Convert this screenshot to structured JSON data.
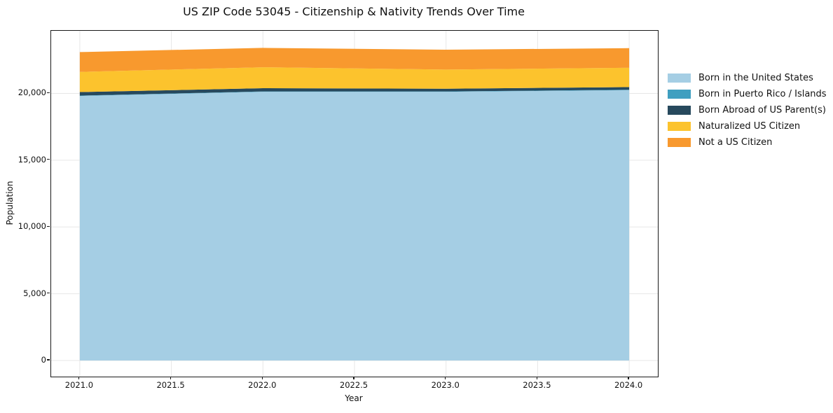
{
  "title": "US ZIP Code 53045 - Citizenship & Nativity Trends Over Time",
  "chart_data": {
    "type": "area",
    "stacked": true,
    "title": "US ZIP Code 53045 - Citizenship & Nativity Trends Over Time",
    "xlabel": "Year",
    "ylabel": "Population",
    "x": [
      2021,
      2022,
      2023,
      2024
    ],
    "series": [
      {
        "name": "Born in the United States",
        "color": "#a5cee4",
        "values": [
          19810,
          20120,
          20120,
          20245
        ]
      },
      {
        "name": "Born in Puerto Rico / Islands",
        "color": "#3f9fc0",
        "values": [
          30,
          30,
          30,
          30
        ]
      },
      {
        "name": "Born Abroad of US Parent(s)",
        "color": "#27495d",
        "values": [
          260,
          240,
          200,
          200
        ]
      },
      {
        "name": "Naturalized US Citizen",
        "color": "#fcc32d",
        "values": [
          1510,
          1570,
          1435,
          1445
        ]
      },
      {
        "name": "Not a US Citizen",
        "color": "#f8992e",
        "values": [
          1485,
          1450,
          1490,
          1470
        ]
      }
    ],
    "xlim": [
      2020.8435,
      2024.1565
    ],
    "ylim": [
      -1208,
      24690
    ],
    "x_ticks": [
      {
        "label": "2021.0",
        "value": 2021.0
      },
      {
        "label": "2021.5",
        "value": 2021.5
      },
      {
        "label": "2022.0",
        "value": 2022.0
      },
      {
        "label": "2022.5",
        "value": 2022.5
      },
      {
        "label": "2023.0",
        "value": 2023.0
      },
      {
        "label": "2023.5",
        "value": 2023.5
      },
      {
        "label": "2024.0",
        "value": 2024.0
      }
    ],
    "y_ticks": [
      {
        "label": "0",
        "value": 0
      },
      {
        "label": "5,000",
        "value": 5000
      },
      {
        "label": "10,000",
        "value": 10000
      },
      {
        "label": "15,000",
        "value": 15000
      },
      {
        "label": "20,000",
        "value": 20000
      }
    ],
    "grid": true,
    "grid_color": "#e7e7e7",
    "legend_position": "right-outside"
  }
}
